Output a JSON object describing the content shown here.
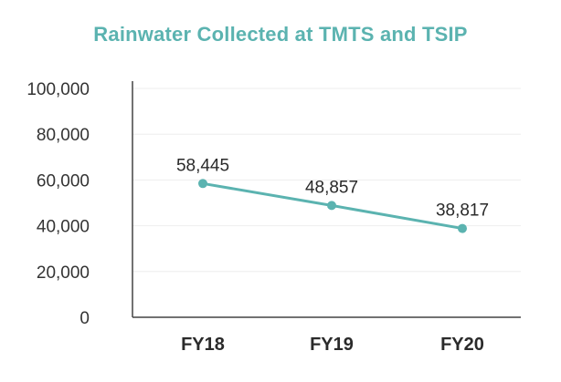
{
  "chart_data": {
    "type": "line",
    "title": "Rainwater Collected at TMTS and TSIP",
    "xlabel": "",
    "ylabel": "",
    "categories": [
      "FY18",
      "FY19",
      "FY20"
    ],
    "series": [
      {
        "values": [
          58445,
          48857,
          38817
        ],
        "data_labels": [
          "58,445",
          "48,857",
          "38,817"
        ]
      }
    ],
    "ylim": [
      0,
      100000
    ],
    "yticks": [
      0,
      20000,
      40000,
      60000,
      80000,
      100000
    ],
    "ytick_labels": [
      "0",
      "20,000",
      "40,000",
      "60,000",
      "80,000",
      "100,000"
    ],
    "grid": true,
    "legend": "none"
  },
  "colors": {
    "title": "#5bb3b0",
    "line": "#5bb3b0",
    "marker": "#5bb3b0",
    "axis": "#444444",
    "grid": "#eeeeee"
  }
}
